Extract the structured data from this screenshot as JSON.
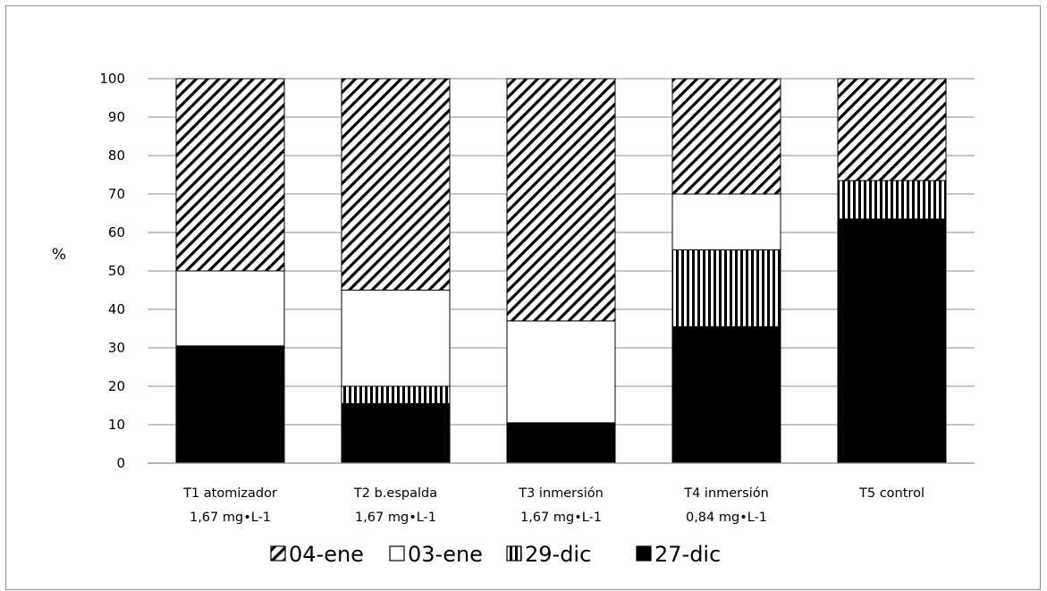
{
  "chart_data": {
    "type": "bar",
    "stacked": true,
    "title": "",
    "xlabel": "",
    "ylabel": "%",
    "ylim": [
      0,
      100
    ],
    "yticks": [
      0,
      10,
      20,
      30,
      40,
      50,
      60,
      70,
      80,
      90,
      100
    ],
    "grid": true,
    "legend_position": "bottom",
    "categories": [
      [
        "T1 atomizador",
        "1,67 mg•L-1"
      ],
      [
        "T2 b.espalda",
        "1,67 mg•L-1"
      ],
      [
        "T3 inmersión",
        "1,67 mg•L-1"
      ],
      [
        "T4 inmersión",
        "0,84 mg•L-1"
      ],
      [
        "T5 control",
        ""
      ]
    ],
    "series": [
      {
        "name": "27-dic",
        "pattern": "solid",
        "values": [
          30.5,
          15.5,
          10.5,
          35.5,
          63.5
        ]
      },
      {
        "name": "29-dic",
        "pattern": "vertical-lines",
        "values": [
          0,
          4.5,
          0,
          20,
          10
        ]
      },
      {
        "name": "03-ene",
        "pattern": "white",
        "values": [
          19.5,
          25,
          26.5,
          14.5,
          0
        ]
      },
      {
        "name": "04-ene",
        "pattern": "diagonal-lines",
        "values": [
          50,
          55,
          63,
          30,
          26.5
        ]
      }
    ],
    "legend_order": [
      "04-ene",
      "03-ene",
      "29-dic",
      "27-dic"
    ]
  }
}
